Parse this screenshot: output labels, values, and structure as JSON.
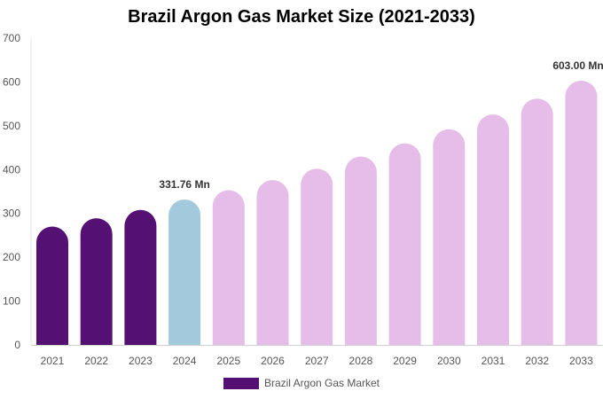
{
  "chart_data": {
    "type": "bar",
    "title": "Brazil Argon Gas Market Size (2021-2033)",
    "xlabel": "",
    "ylabel": "",
    "categories": [
      "2021",
      "2022",
      "2023",
      "2024",
      "2025",
      "2026",
      "2027",
      "2028",
      "2029",
      "2030",
      "2031",
      "2032",
      "2033"
    ],
    "series": [
      {
        "name": "Brazil Argon Gas Market",
        "values": [
          270,
          289,
          308,
          331.76,
          353,
          376,
          402,
          430,
          460,
          492,
          526,
          562,
          603
        ]
      }
    ],
    "yticks": [
      "0",
      "100",
      "200",
      "300",
      "400",
      "500",
      "600",
      "700"
    ],
    "ylim": [
      0,
      700
    ],
    "grid": false,
    "legend": "bottom-center",
    "data_labels": [
      {
        "index": 3,
        "text": "331.76 Mn"
      },
      {
        "index": 12,
        "text": "603.00 Mn"
      }
    ],
    "colors": {
      "historical": "#541173",
      "base_year": "#a3c9dd",
      "forecast": "#e6bde8",
      "legend": "#541173",
      "axis_text": "#555555"
    }
  }
}
